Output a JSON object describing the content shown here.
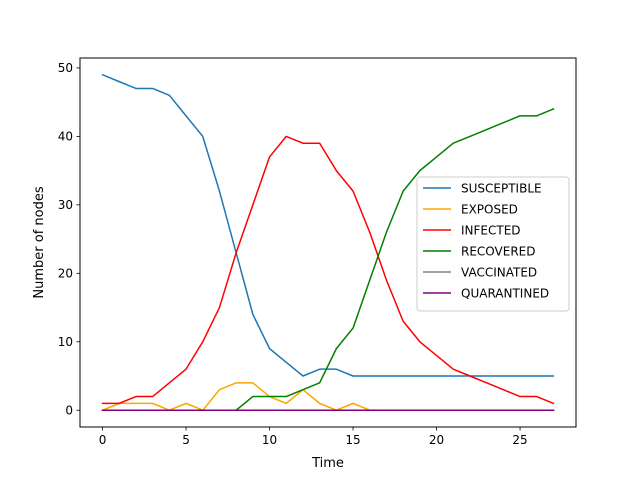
{
  "chart_data": {
    "type": "line",
    "title": "",
    "xlabel": "Time",
    "ylabel": "Number of nodes",
    "xlim": [
      -1.35,
      28.35
    ],
    "ylim": [
      -2.45,
      51.45
    ],
    "xticks": [
      0,
      5,
      10,
      15,
      20,
      25
    ],
    "yticks": [
      0,
      10,
      20,
      30,
      40,
      50
    ],
    "grid": false,
    "legend_position": "center-right",
    "x": [
      0,
      1,
      2,
      3,
      4,
      5,
      6,
      7,
      8,
      9,
      10,
      11,
      12,
      13,
      14,
      15,
      16,
      17,
      18,
      19,
      20,
      21,
      22,
      23,
      24,
      25,
      26,
      27
    ],
    "series": [
      {
        "name": "SUSCEPTIBLE",
        "color": "#1f77b4",
        "values": [
          49,
          48,
          47,
          47,
          46,
          43,
          40,
          32,
          23,
          14,
          9,
          7,
          5,
          6,
          6,
          5,
          5,
          5,
          5,
          5,
          5,
          5,
          5,
          5,
          5,
          5,
          5,
          5
        ]
      },
      {
        "name": "EXPOSED",
        "color": "#ffa500",
        "values": [
          0,
          1,
          1,
          1,
          0,
          1,
          0,
          3,
          4,
          4,
          2,
          1,
          3,
          1,
          0,
          1,
          0,
          0,
          0,
          0,
          0,
          0,
          0,
          0,
          0,
          0,
          0,
          0
        ]
      },
      {
        "name": "INFECTED",
        "color": "#ff0000",
        "values": [
          1,
          1,
          2,
          2,
          4,
          6,
          10,
          15,
          23,
          30,
          37,
          40,
          39,
          39,
          35,
          32,
          26,
          19,
          13,
          10,
          8,
          6,
          5,
          4,
          3,
          2,
          2,
          1
        ]
      },
      {
        "name": "RECOVERED",
        "color": "#008000",
        "values": [
          0,
          0,
          0,
          0,
          0,
          0,
          0,
          0,
          0,
          2,
          2,
          2,
          3,
          4,
          9,
          12,
          19,
          26,
          32,
          35,
          37,
          39,
          40,
          41,
          42,
          43,
          43,
          44
        ]
      },
      {
        "name": "VACCINATED",
        "color": "#808080",
        "values": [
          0,
          0,
          0,
          0,
          0,
          0,
          0,
          0,
          0,
          0,
          0,
          0,
          0,
          0,
          0,
          0,
          0,
          0,
          0,
          0,
          0,
          0,
          0,
          0,
          0,
          0,
          0,
          0
        ]
      },
      {
        "name": "QUARANTINED",
        "color": "#800080",
        "values": [
          0,
          0,
          0,
          0,
          0,
          0,
          0,
          0,
          0,
          0,
          0,
          0,
          0,
          0,
          0,
          0,
          0,
          0,
          0,
          0,
          0,
          0,
          0,
          0,
          0,
          0,
          0,
          0
        ]
      }
    ]
  }
}
